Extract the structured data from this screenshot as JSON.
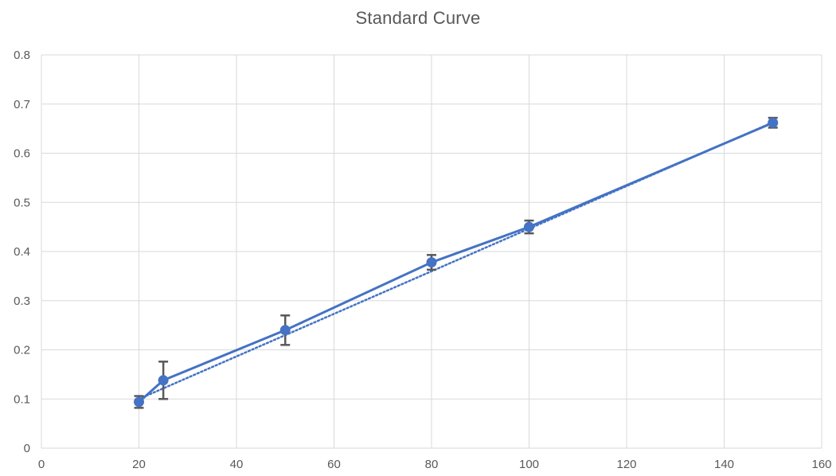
{
  "chart_data": {
    "type": "scatter",
    "title": "Standard Curve",
    "xlabel": "",
    "ylabel": "",
    "xlim": [
      0,
      160
    ],
    "ylim": [
      0,
      0.8
    ],
    "x_ticks": [
      "0",
      "20",
      "40",
      "60",
      "80",
      "100",
      "120",
      "140",
      "160"
    ],
    "y_ticks": [
      "0",
      "0.1",
      "0.2",
      "0.3",
      "0.4",
      "0.5",
      "0.6",
      "0.7",
      "0.8"
    ],
    "grid": true,
    "legend": "none",
    "series": [
      {
        "x": [
          20,
          25,
          50,
          80,
          100,
          150
        ],
        "y": [
          0.094,
          0.138,
          0.24,
          0.378,
          0.45,
          0.662
        ],
        "y_error": [
          0.012,
          0.038,
          0.03,
          0.015,
          0.013,
          0.01
        ],
        "color": "#4472C4",
        "line": "solid",
        "marker": "circle"
      }
    ],
    "trendline": {
      "type": "linear",
      "x_range": [
        20,
        150
      ],
      "y_range": [
        0.1,
        0.663
      ],
      "color": "#4472C4",
      "line": "dotted"
    },
    "error_bar_color": "#595959"
  }
}
